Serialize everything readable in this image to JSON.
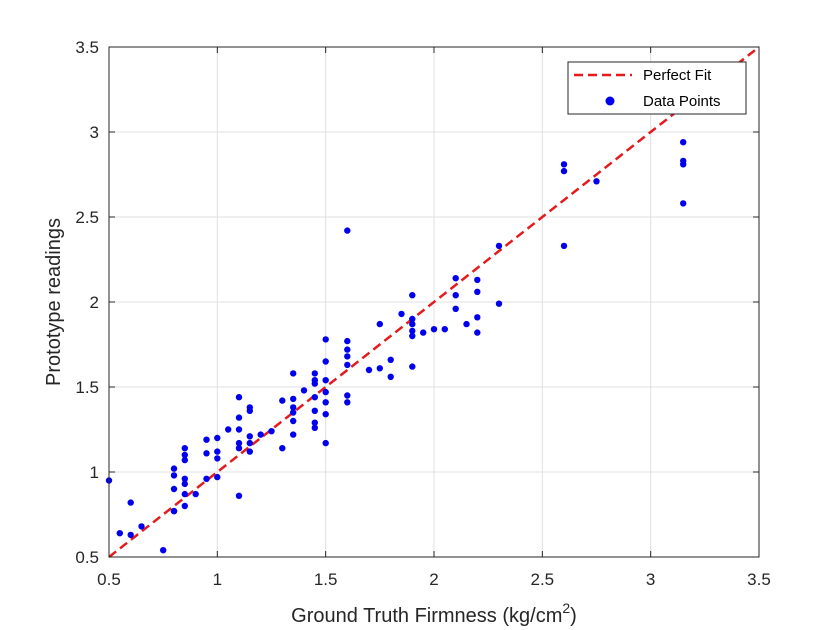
{
  "chart_data": {
    "type": "scatter",
    "xlabel": "Ground Truth Firmness (kg/cm",
    "xlabel_superscript": "2",
    "xlabel_suffix": ")",
    "ylabel": "Prototype readings",
    "xlim": [
      0.5,
      3.5
    ],
    "ylim": [
      0.5,
      3.5
    ],
    "xticks": [
      "0.5",
      "1",
      "1.5",
      "2",
      "2.5",
      "3",
      "3.5"
    ],
    "yticks": [
      "0.5",
      "1",
      "1.5",
      "2",
      "2.5",
      "3",
      "3.5"
    ],
    "grid": true,
    "legend_position": "top-right",
    "colors": {
      "fit_line": "#e41a1c",
      "points": "#0000ee",
      "grid": "#e0e0e0",
      "axes": "#262626"
    },
    "series": [
      {
        "name": "Perfect Fit",
        "style": "dashed-line",
        "x": [
          0.5,
          3.5
        ],
        "y": [
          0.5,
          3.5
        ]
      },
      {
        "name": "Data Points",
        "style": "markers",
        "x": [
          0.5,
          0.55,
          0.6,
          0.6,
          0.65,
          0.75,
          0.8,
          0.8,
          0.8,
          0.8,
          0.8,
          0.85,
          0.85,
          0.85,
          0.85,
          0.85,
          0.85,
          0.85,
          0.9,
          0.95,
          0.95,
          0.95,
          1.0,
          1.0,
          1.0,
          1.0,
          1.05,
          1.1,
          1.1,
          1.1,
          1.1,
          1.1,
          1.1,
          1.15,
          1.15,
          1.15,
          1.15,
          1.15,
          1.2,
          1.25,
          1.3,
          1.3,
          1.35,
          1.35,
          1.35,
          1.35,
          1.35,
          1.35,
          1.4,
          1.45,
          1.45,
          1.45,
          1.45,
          1.45,
          1.45,
          1.45,
          1.5,
          1.5,
          1.5,
          1.5,
          1.5,
          1.5,
          1.5,
          1.6,
          1.6,
          1.6,
          1.6,
          1.6,
          1.6,
          1.6,
          1.7,
          1.75,
          1.75,
          1.8,
          1.8,
          1.85,
          1.9,
          1.9,
          1.9,
          1.9,
          1.9,
          1.9,
          1.95,
          2.0,
          2.05,
          2.1,
          2.1,
          2.1,
          2.15,
          2.2,
          2.2,
          2.2,
          2.2,
          2.3,
          2.3,
          2.6,
          2.6,
          2.6,
          2.75,
          3.15,
          3.15,
          3.15,
          3.15
        ],
        "y": [
          0.95,
          0.64,
          0.82,
          0.63,
          0.68,
          0.54,
          0.77,
          0.9,
          0.98,
          1.02,
          0.77,
          1.14,
          1.1,
          1.07,
          0.96,
          0.93,
          0.8,
          0.87,
          0.87,
          1.19,
          1.11,
          0.96,
          1.2,
          1.12,
          1.08,
          0.97,
          1.25,
          1.44,
          1.32,
          1.25,
          1.17,
          1.14,
          0.86,
          1.38,
          1.36,
          1.21,
          1.17,
          1.12,
          1.22,
          1.24,
          1.42,
          1.14,
          1.58,
          1.43,
          1.38,
          1.35,
          1.3,
          1.22,
          1.48,
          1.58,
          1.54,
          1.52,
          1.44,
          1.36,
          1.29,
          1.26,
          1.78,
          1.65,
          1.54,
          1.47,
          1.41,
          1.34,
          1.17,
          2.42,
          1.77,
          1.72,
          1.68,
          1.63,
          1.45,
          1.41,
          1.6,
          1.87,
          1.61,
          1.66,
          1.56,
          1.93,
          2.04,
          1.9,
          1.87,
          1.83,
          1.8,
          1.62,
          1.82,
          1.84,
          1.84,
          2.14,
          2.04,
          1.96,
          1.87,
          2.13,
          2.06,
          1.91,
          1.82,
          2.33,
          1.99,
          2.81,
          2.77,
          2.33,
          2.71,
          2.94,
          2.83,
          2.81,
          2.58
        ]
      }
    ]
  }
}
